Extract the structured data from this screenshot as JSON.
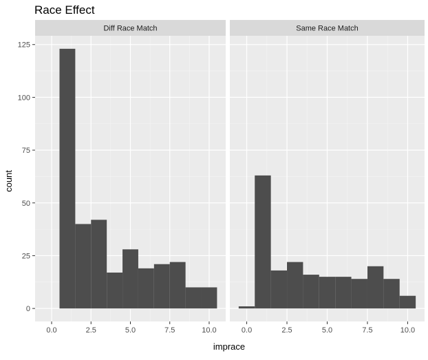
{
  "chart_data": {
    "type": "bar",
    "title": "Race Effect",
    "xlabel": "imprace",
    "ylabel": "count",
    "xlim": [
      -1.05,
      11.05
    ],
    "ylim": [
      -6.15,
      129.15
    ],
    "x_ticks": [
      0.0,
      2.5,
      5.0,
      7.5,
      10.0
    ],
    "x_tick_labels": [
      "0.0",
      "2.5",
      "5.0",
      "7.5",
      "10.0"
    ],
    "y_ticks": [
      0,
      25,
      50,
      75,
      100,
      125
    ],
    "y_tick_labels": [
      "0",
      "25",
      "50",
      "75",
      "100",
      "125"
    ],
    "grid": true,
    "bin_width": 1.0,
    "bar_color": "#4d4d4d",
    "panel_background": "#ebebeb",
    "strip_background": "#d9d9d9",
    "panels": [
      {
        "strip_label": "Diff Race Match",
        "bins": [
          {
            "x": 1,
            "count": 123
          },
          {
            "x": 2,
            "count": 40
          },
          {
            "x": 3,
            "count": 42
          },
          {
            "x": 4,
            "count": 17
          },
          {
            "x": 5,
            "count": 28
          },
          {
            "x": 6,
            "count": 19
          },
          {
            "x": 7,
            "count": 21
          },
          {
            "x": 8,
            "count": 22
          },
          {
            "x": 9,
            "count": 10
          },
          {
            "x": 10,
            "count": 10
          }
        ]
      },
      {
        "strip_label": "Same Race Match",
        "bins": [
          {
            "x": 0,
            "count": 1
          },
          {
            "x": 1,
            "count": 63
          },
          {
            "x": 2,
            "count": 18
          },
          {
            "x": 3,
            "count": 22
          },
          {
            "x": 4,
            "count": 16
          },
          {
            "x": 5,
            "count": 15
          },
          {
            "x": 6,
            "count": 15
          },
          {
            "x": 7,
            "count": 14
          },
          {
            "x": 8,
            "count": 20
          },
          {
            "x": 9,
            "count": 14
          },
          {
            "x": 10,
            "count": 6
          }
        ]
      }
    ]
  }
}
